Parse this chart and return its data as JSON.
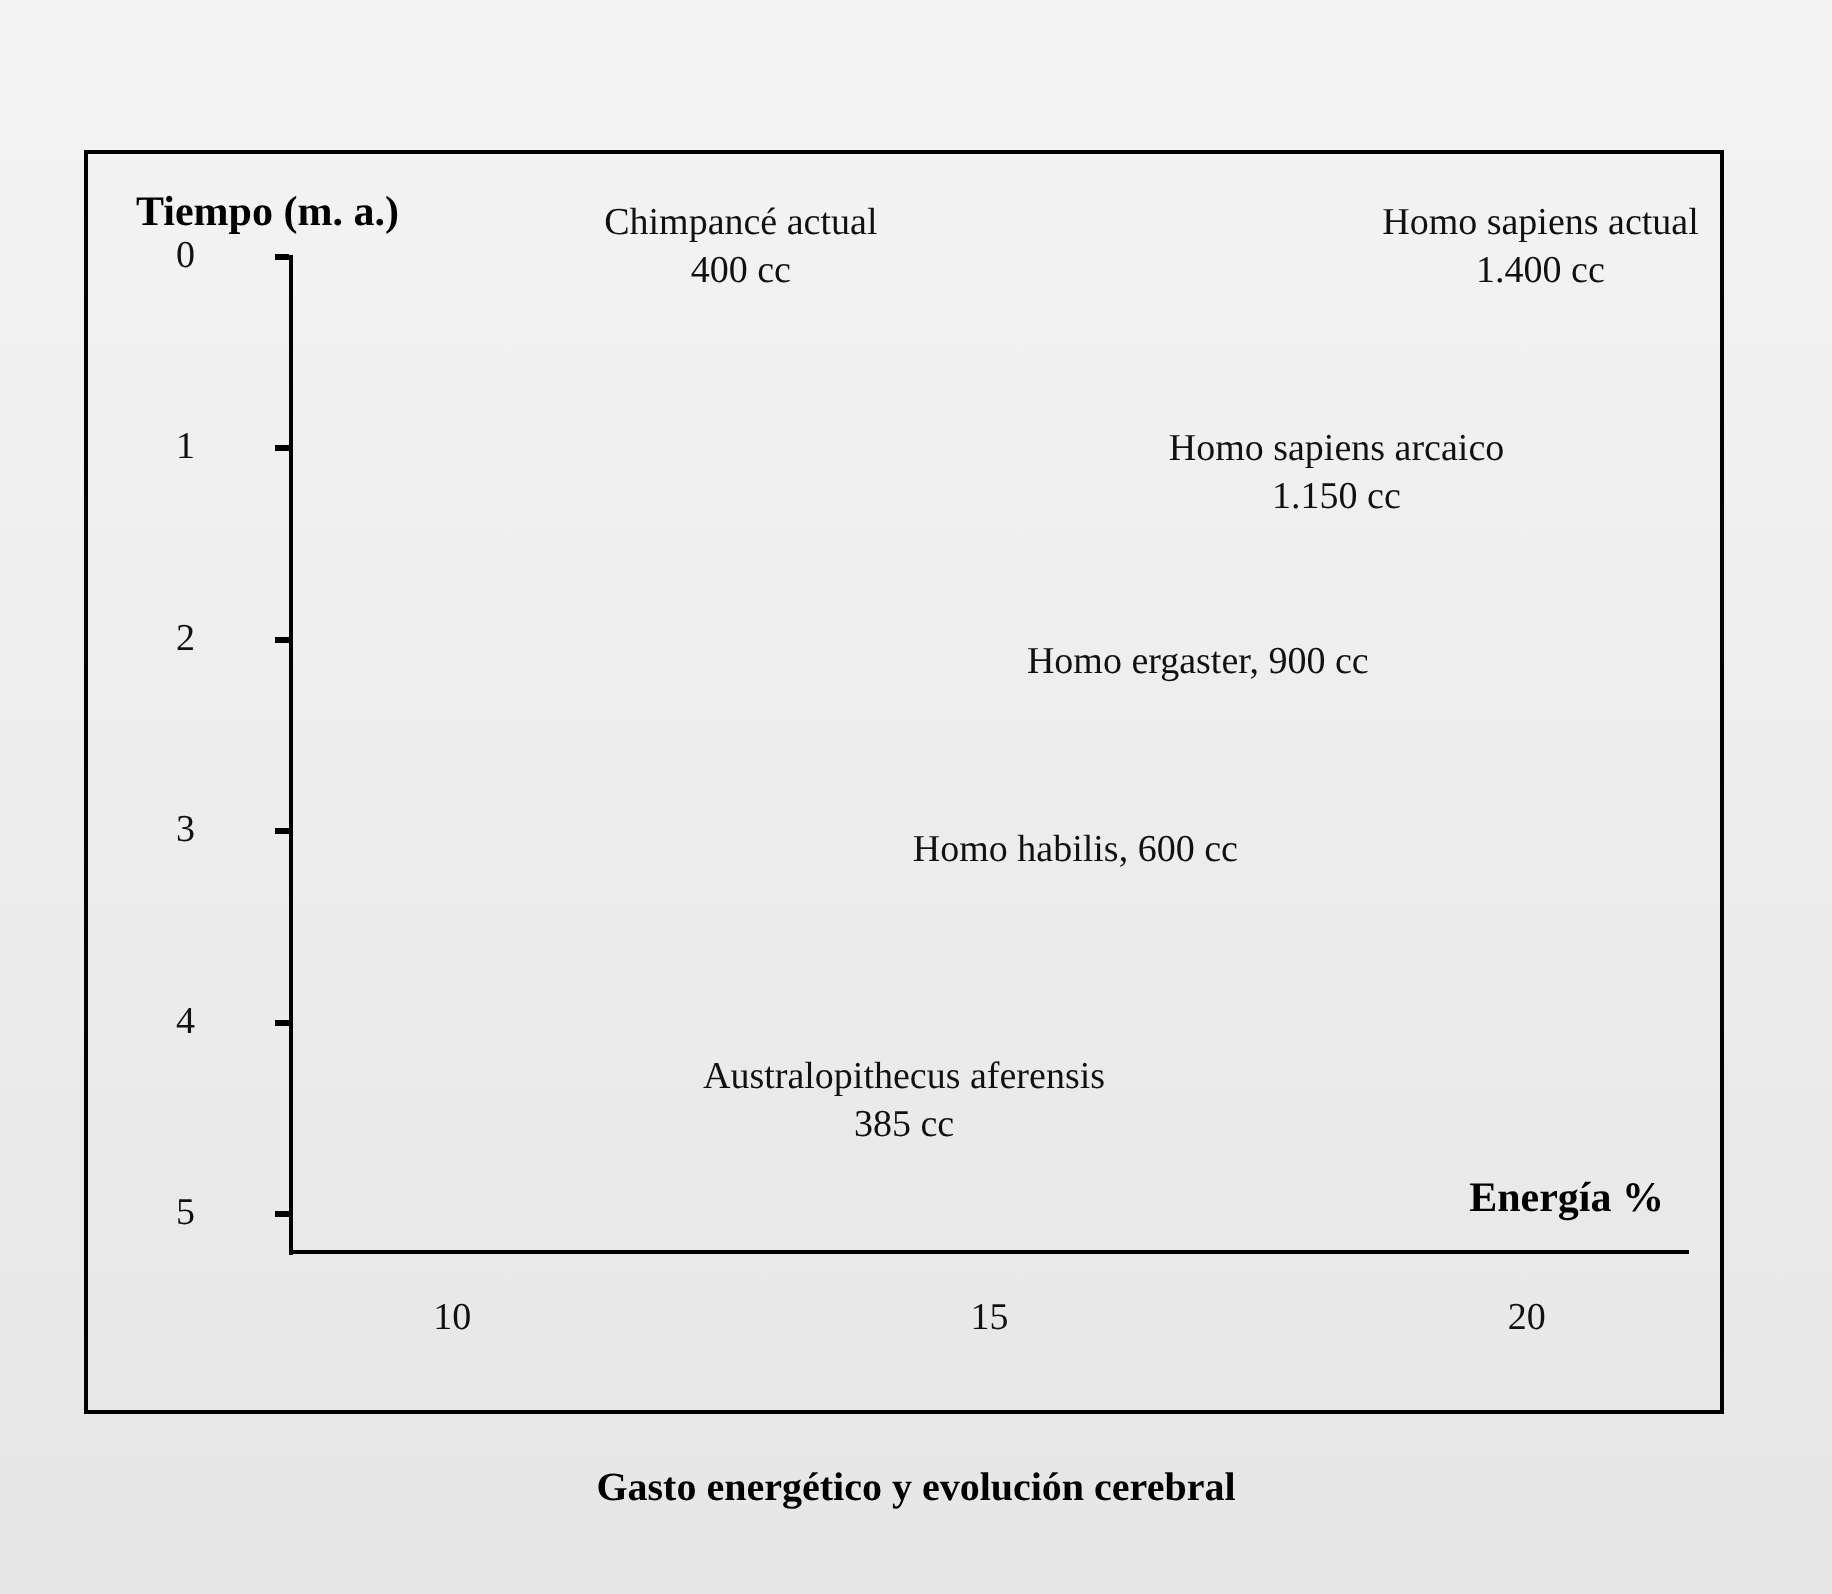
{
  "chart_data": {
    "type": "scatter",
    "xlabel": "Energía %",
    "ylabel": "Tiempo (m. a.)",
    "title": "Gasto energético y evolución cerebral",
    "annotations": [
      "Chimpancé actual\n400 cc",
      "Homo sapiens actual\n1.400 cc",
      "Homo sapiens arcaico\n1.150 cc",
      "Homo ergaster, 900 cc",
      "Homo habilis, 600 cc",
      "Australopithecus aferensis\n385 cc"
    ],
    "grid": false,
    "xlim": [
      8.5,
      21.5
    ],
    "xticks": [
      10,
      15,
      20
    ],
    "ylim": [
      5.2,
      0
    ],
    "yticks": [
      0,
      1,
      2,
      3,
      4,
      5
    ]
  }
}
